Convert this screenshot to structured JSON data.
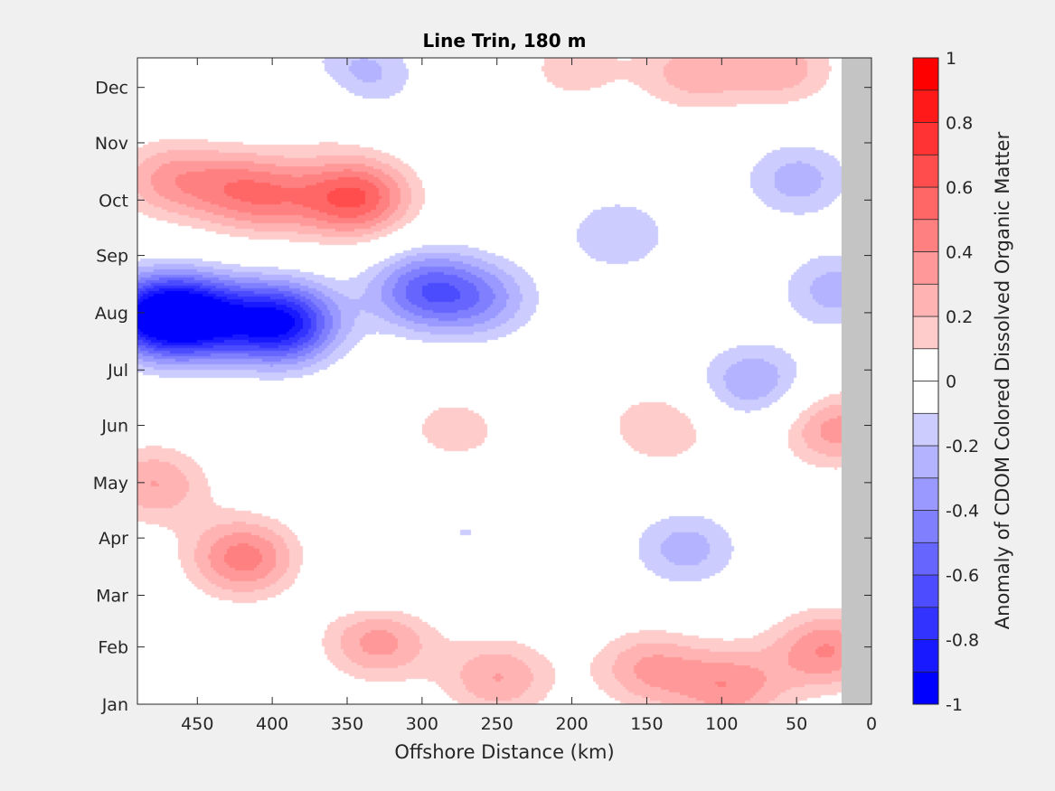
{
  "chart_data": {
    "type": "heatmap",
    "title": "Line Trin, 180 m",
    "xlabel": "Offshore Distance (km)",
    "ylabel": "",
    "colorbar_label": "Anomaly of CDOM Colored Dissolved Organic Matter",
    "x_reversed": true,
    "xlim": [
      490,
      0
    ],
    "x_ticks": [
      450,
      400,
      350,
      300,
      250,
      200,
      150,
      100,
      50,
      0
    ],
    "y_ticks": [
      "Jan",
      "Feb",
      "Mar",
      "Apr",
      "May",
      "Jun",
      "Jul",
      "Aug",
      "Sep",
      "Oct",
      "Nov",
      "Dec"
    ],
    "y_tick_days": [
      15,
      46,
      74,
      105,
      135,
      166,
      196,
      227,
      258,
      288,
      319,
      349
    ],
    "ylim_days": [
      15,
      365
    ],
    "colorbar_ticks": [
      1,
      0.8,
      0.6,
      0.4,
      0.2,
      0,
      -0.2,
      -0.4,
      -0.6,
      -0.8,
      -1
    ],
    "clim": [
      -1,
      1
    ],
    "contour_levels": [
      -1,
      -0.9,
      -0.8,
      -0.7,
      -0.6,
      -0.5,
      -0.4,
      -0.3,
      -0.2,
      -0.1,
      0,
      0.1,
      0.2,
      0.3,
      0.4,
      0.5,
      0.6,
      0.7,
      0.8,
      0.9,
      1
    ],
    "zero_contour": true,
    "no_data_x_range": [
      20,
      0
    ],
    "anomaly_features": [
      {
        "x": 395,
        "day": 222,
        "value": -0.95
      },
      {
        "x": 450,
        "day": 225,
        "value": -0.75
      },
      {
        "x": 480,
        "day": 226,
        "value": -0.85
      },
      {
        "x": 300,
        "day": 240,
        "value": -0.55
      },
      {
        "x": 260,
        "day": 235,
        "value": -0.35
      },
      {
        "x": 170,
        "day": 270,
        "value": -0.25
      },
      {
        "x": 80,
        "day": 190,
        "value": -0.35
      },
      {
        "x": 50,
        "day": 300,
        "value": -0.3
      },
      {
        "x": 25,
        "day": 240,
        "value": -0.3
      },
      {
        "x": 345,
        "day": 355,
        "value": -0.4
      },
      {
        "x": 415,
        "day": 355,
        "value": -0.15
      },
      {
        "x": 330,
        "day": 85,
        "value": -0.15
      },
      {
        "x": 270,
        "day": 110,
        "value": -0.15
      },
      {
        "x": 125,
        "day": 100,
        "value": -0.3
      },
      {
        "x": 400,
        "day": 290,
        "value": 0.3
      },
      {
        "x": 345,
        "day": 290,
        "value": 0.65
      },
      {
        "x": 470,
        "day": 300,
        "value": 0.35
      },
      {
        "x": 425,
        "day": 295,
        "value": 0.3
      },
      {
        "x": 365,
        "day": 345,
        "value": 0.25
      },
      {
        "x": 200,
        "day": 360,
        "value": 0.2
      },
      {
        "x": 120,
        "day": 358,
        "value": 0.3
      },
      {
        "x": 60,
        "day": 360,
        "value": 0.3
      },
      {
        "x": 420,
        "day": 95,
        "value": 0.5
      },
      {
        "x": 480,
        "day": 135,
        "value": 0.35
      },
      {
        "x": 330,
        "day": 50,
        "value": 0.4
      },
      {
        "x": 250,
        "day": 30,
        "value": 0.35
      },
      {
        "x": 150,
        "day": 35,
        "value": 0.35
      },
      {
        "x": 95,
        "day": 25,
        "value": 0.4
      },
      {
        "x": 30,
        "day": 45,
        "value": 0.45
      },
      {
        "x": 25,
        "day": 165,
        "value": 0.4
      },
      {
        "x": 280,
        "day": 165,
        "value": 0.2
      },
      {
        "x": 140,
        "day": 165,
        "value": 0.25
      },
      {
        "x": 200,
        "day": 185,
        "value": 0.05
      },
      {
        "x": 230,
        "day": 140,
        "value": 0.05
      }
    ],
    "colors": {
      "max": "#ff0000",
      "min": "#0000ff",
      "zero": "#ffffff",
      "no_data": "#c4c4c4",
      "background": "#f0f0f0"
    }
  }
}
